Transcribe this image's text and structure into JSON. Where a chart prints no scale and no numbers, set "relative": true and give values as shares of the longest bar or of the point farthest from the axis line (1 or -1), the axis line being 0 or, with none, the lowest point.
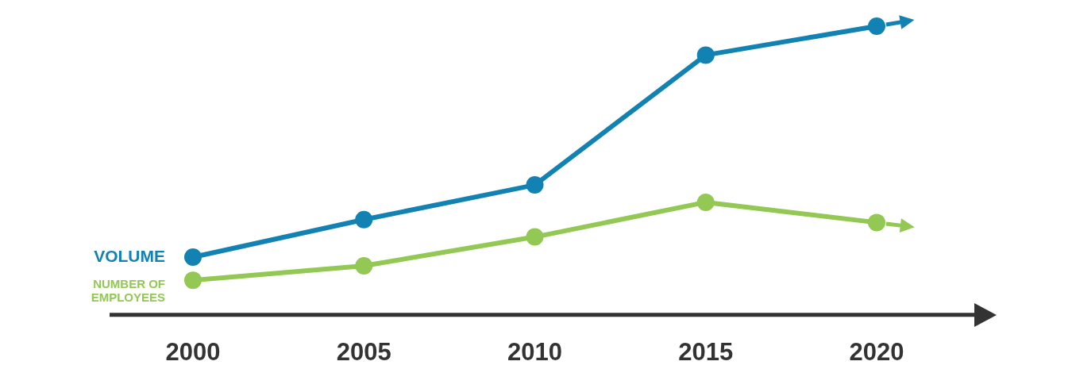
{
  "chart_data": {
    "type": "line",
    "relative": true,
    "categories": [
      "2000",
      "2005",
      "2010",
      "2015",
      "2020"
    ],
    "marker": "circle",
    "line_style": "solid",
    "grid": false,
    "series": [
      {
        "name": "VOLUME",
        "color": "#1282b2",
        "values": [
          0.2,
          0.33,
          0.45,
          0.9,
          1.0
        ]
      },
      {
        "name": "NUMBER OF EMPLOYEES",
        "color": "#92c853",
        "values": [
          0.12,
          0.17,
          0.27,
          0.39,
          0.32
        ]
      }
    ]
  }
}
